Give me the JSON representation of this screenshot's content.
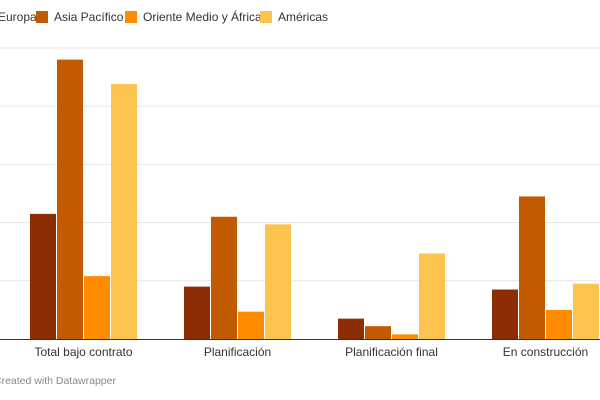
{
  "chart_data": {
    "type": "bar",
    "categories": [
      "Total bajo contrato",
      "Planificación",
      "Planificación final",
      "En construcción"
    ],
    "series": [
      {
        "name": "Europa",
        "color": "#8c2d04",
        "values": [
          2.15,
          0.9,
          0.35,
          0.85
        ]
      },
      {
        "name": "Asia Pacífico",
        "color": "#c25a00",
        "values": [
          4.8,
          2.1,
          0.22,
          2.45
        ]
      },
      {
        "name": "Oriente Medio y África",
        "color": "#ff8c00",
        "values": [
          1.08,
          0.47,
          0.08,
          0.5
        ]
      },
      {
        "name": "Américas",
        "color": "#fdc34f",
        "values": [
          4.38,
          1.97,
          1.47,
          0.95
        ]
      }
    ],
    "ylim": [
      0,
      5
    ],
    "grid": true,
    "legend_position": "top-left"
  },
  "footer": {
    "credit": "Created with Datawrapper"
  }
}
